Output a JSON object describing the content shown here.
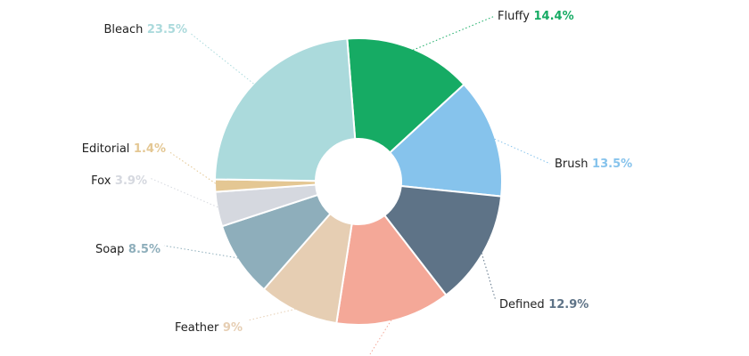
{
  "chart_data": {
    "type": "pie",
    "donut": true,
    "title": "",
    "slices": [
      {
        "name": "Fluffy",
        "value": 14.4,
        "label": "14.4%",
        "color": "#16ab64"
      },
      {
        "name": "Brush",
        "value": 13.5,
        "label": "13.5%",
        "color": "#86c3ec"
      },
      {
        "name": "Defined",
        "value": 12.9,
        "label": "12.9%",
        "color": "#5e7387"
      },
      {
        "name": "",
        "value": 12.9,
        "label": "",
        "color": "#f4a898"
      },
      {
        "name": "Feather",
        "value": 9.0,
        "label": "9%",
        "color": "#e6ceb3"
      },
      {
        "name": "Soap",
        "value": 8.5,
        "label": "8.5%",
        "color": "#8eaebb"
      },
      {
        "name": "Fox",
        "value": 3.9,
        "label": "3.9%",
        "color": "#d5d8df"
      },
      {
        "name": "Editorial",
        "value": 1.4,
        "label": "1.4%",
        "color": "#e4c793"
      },
      {
        "name": "Bleach",
        "value": 23.5,
        "label": "23.5%",
        "color": "#abdadc"
      }
    ]
  }
}
